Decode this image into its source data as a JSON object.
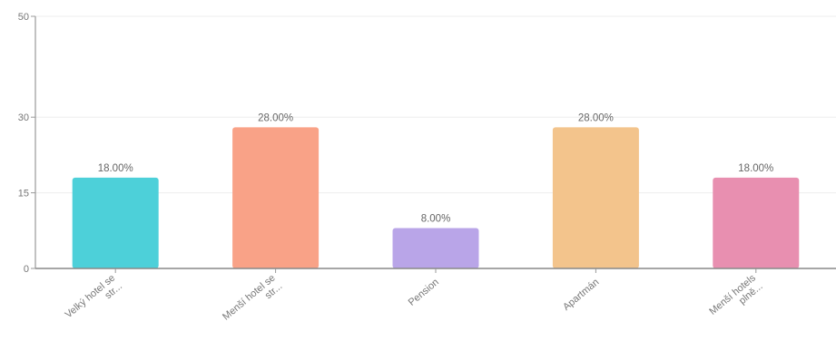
{
  "chart_data": {
    "type": "bar",
    "title": "",
    "xlabel": "",
    "ylabel": "",
    "ylim": [
      0,
      50
    ],
    "y_ticks": [
      0,
      15,
      30,
      50
    ],
    "grid": true,
    "categories": [
      [
        "Velký hotel se",
        "str..."
      ],
      [
        "Menší hotel se",
        "str..."
      ],
      [
        "Pension"
      ],
      [
        "Apartmán"
      ],
      [
        "Menší hotels",
        "plně..."
      ]
    ],
    "values": [
      18,
      28,
      8,
      28,
      18
    ],
    "value_labels": [
      "18.00%",
      "28.00%",
      "8.00%",
      "28.00%",
      "18.00%"
    ],
    "colors": [
      "#4dd0d9",
      "#f9a287",
      "#b9a5e8",
      "#f3c48c",
      "#e88fb0"
    ]
  }
}
